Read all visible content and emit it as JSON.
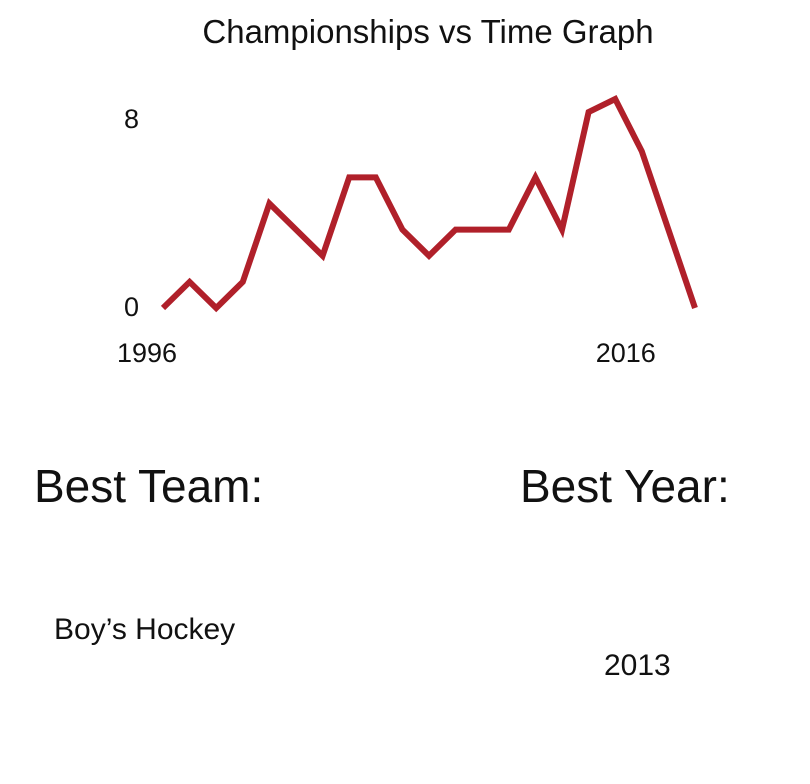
{
  "chart_data": {
    "type": "line",
    "title": "Championships vs Time Graph",
    "xlabel": "",
    "ylabel": "",
    "x": [
      1996,
      1997,
      1998,
      1999,
      2000,
      2001,
      2002,
      2003,
      2004,
      2005,
      2006,
      2007,
      2008,
      2009,
      2010,
      2011,
      2012,
      2013,
      2014,
      2015,
      2016
    ],
    "values": [
      0,
      1,
      0,
      1,
      4,
      3,
      2,
      5,
      5,
      3,
      2,
      3,
      3,
      3,
      5,
      3,
      7.5,
      8,
      6,
      3,
      0
    ],
    "ylim": [
      0,
      8
    ],
    "y_ticks": [
      0,
      8
    ],
    "x_tick_labels": [
      {
        "x": 1996,
        "label": "1996"
      },
      {
        "x": 2014,
        "label": "2016"
      }
    ],
    "grid": false,
    "line_color": "#b0202a"
  },
  "stats": {
    "best_team": {
      "label": "Best Team:",
      "value": "Boy’s Hockey"
    },
    "best_year": {
      "label": "Best Year:",
      "value": "2013"
    }
  }
}
